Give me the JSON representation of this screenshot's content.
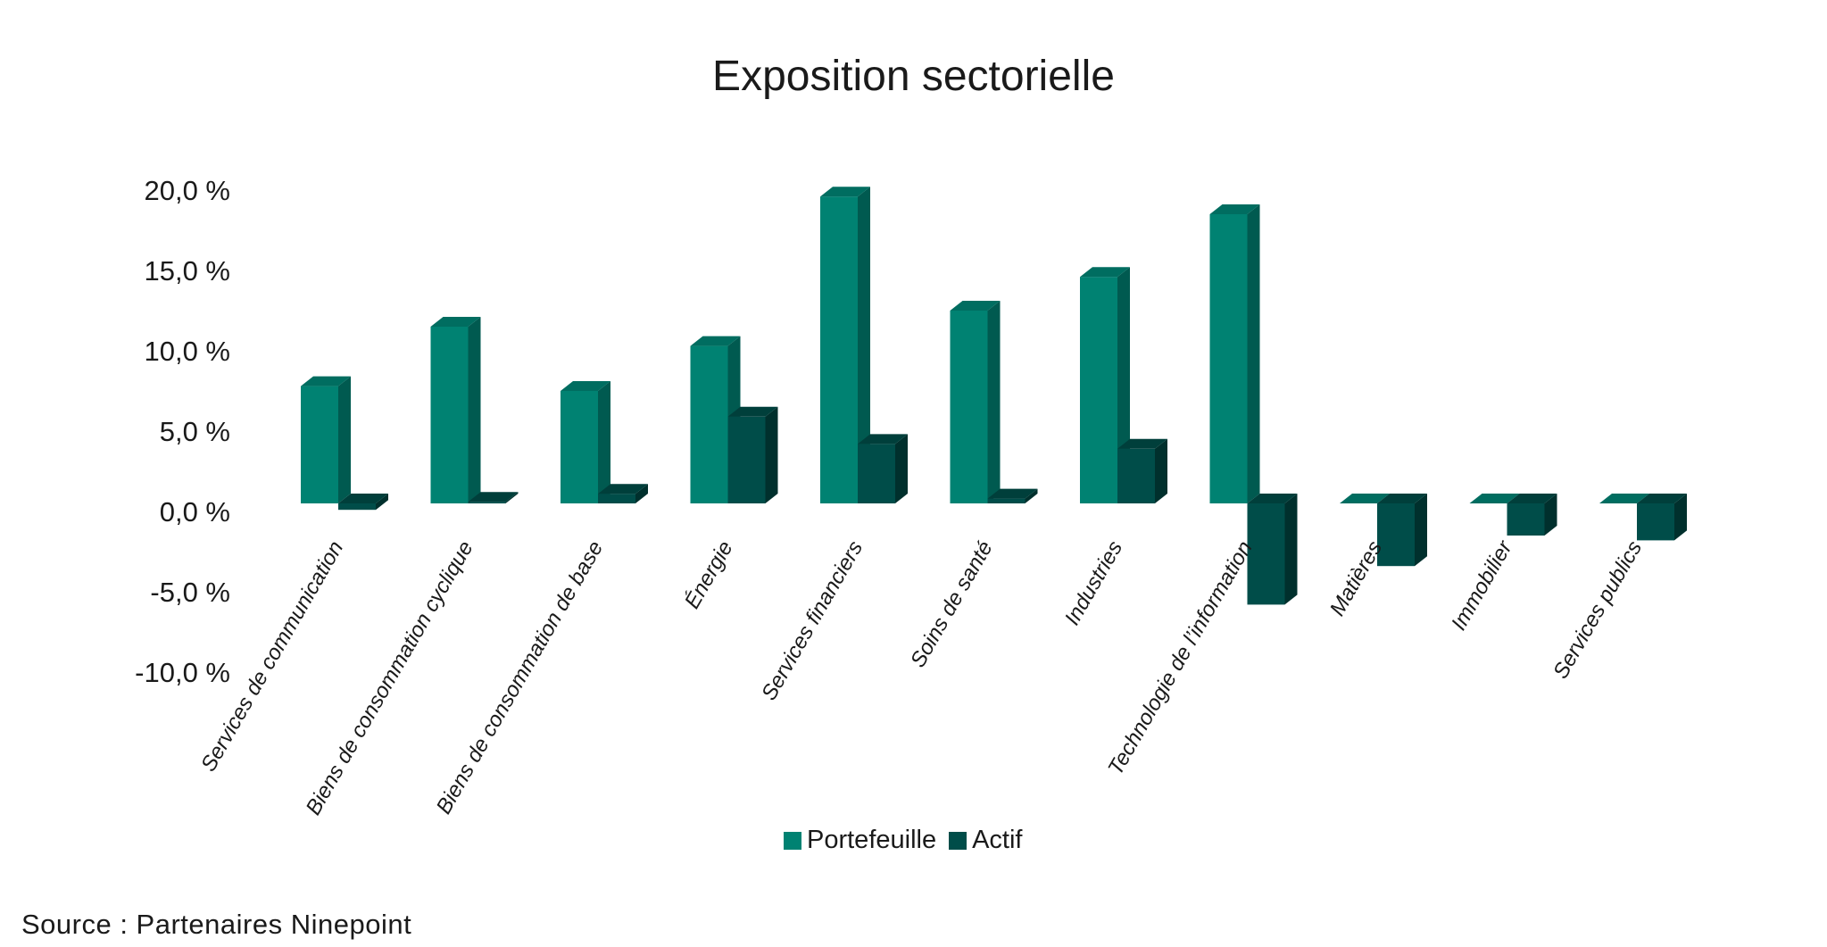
{
  "chart_data": {
    "type": "bar",
    "title": "Exposition sectorielle",
    "xlabel": "",
    "ylabel": "",
    "ylim": [
      -10,
      20
    ],
    "yticks": [
      "20,0 %",
      "15,0 %",
      "10,0 %",
      "5,0 %",
      "0,0 %",
      "-5,0 %",
      "-10,0 %"
    ],
    "ytick_values": [
      20,
      15,
      10,
      5,
      0,
      -5,
      -10
    ],
    "categories": [
      "Services de communication",
      "Biens de consommation cyclique",
      "Biens de consommation de base",
      "Énergie",
      "Services financiers",
      "Soins de santé",
      "Industries",
      "Technologie de l’information",
      "Matières",
      "Immobilier",
      "Services publics"
    ],
    "series": [
      {
        "name": "Portefeuille",
        "color": "#008272",
        "values": [
          7.3,
          11.0,
          7.0,
          9.8,
          19.1,
          12.0,
          14.1,
          18.0,
          0,
          0,
          0
        ]
      },
      {
        "name": "Actif",
        "color": "#004d49",
        "values": [
          -0.4,
          0.1,
          0.6,
          5.4,
          3.7,
          0.3,
          3.4,
          -6.3,
          -3.9,
          -2.0,
          -2.3
        ]
      }
    ],
    "legend_position": "bottom",
    "grid": false
  },
  "source": "Source : Partenaires Ninepoint"
}
